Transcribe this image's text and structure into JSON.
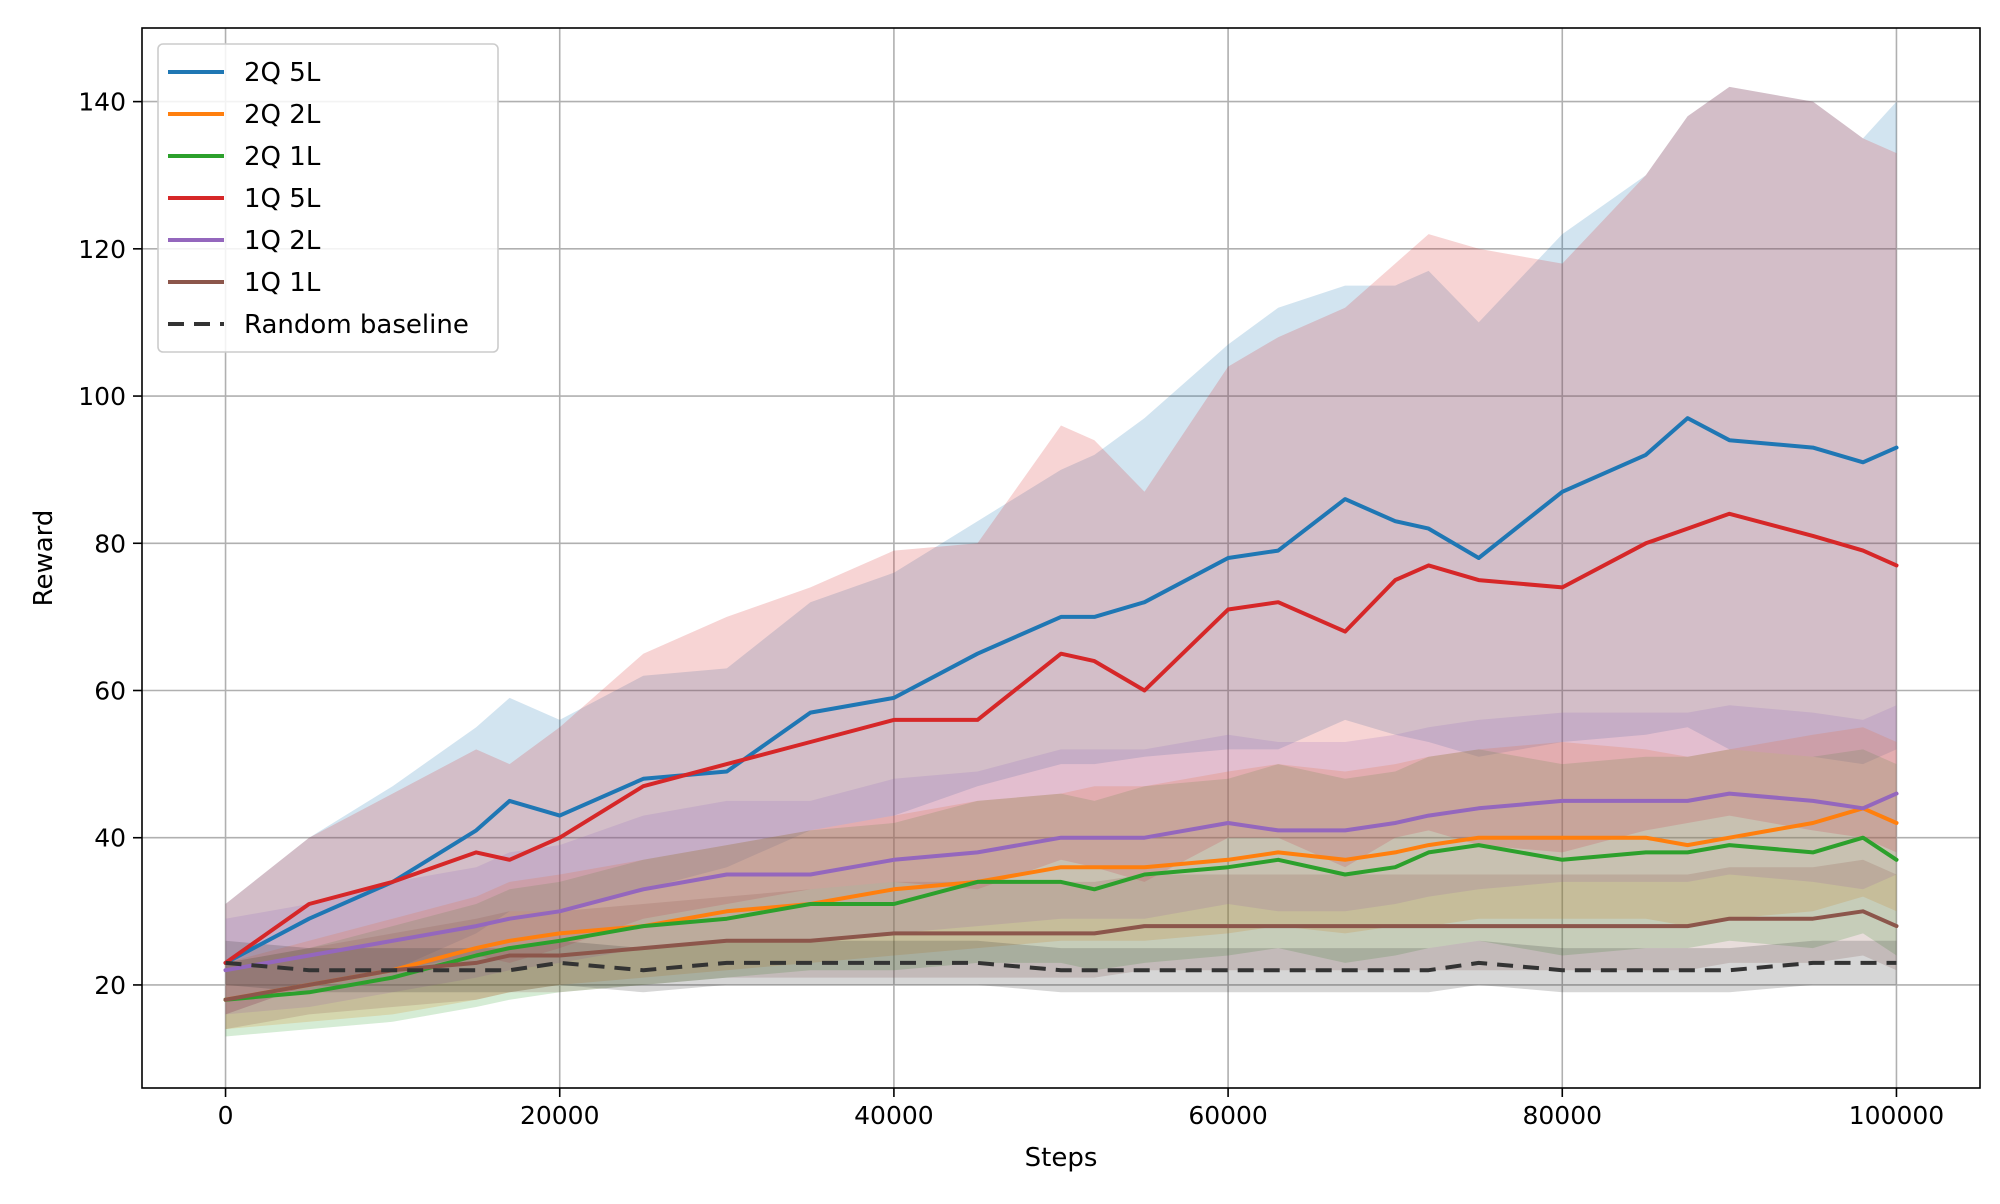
{
  "chart_data": {
    "type": "line",
    "title": "",
    "xlabel": "Steps",
    "ylabel": "Reward",
    "xlim": [
      -5000,
      105000
    ],
    "ylim": [
      6,
      150
    ],
    "xticks": [
      0,
      20000,
      40000,
      60000,
      80000,
      100000
    ],
    "yticks": [
      20,
      40,
      60,
      80,
      100,
      120,
      140
    ],
    "grid": true,
    "legend_position": "top-left",
    "x": [
      0,
      5000,
      10000,
      15000,
      17000,
      20000,
      25000,
      30000,
      35000,
      40000,
      45000,
      50000,
      52000,
      55000,
      60000,
      63000,
      67000,
      70000,
      72000,
      75000,
      80000,
      85000,
      87500,
      90000,
      95000,
      98000,
      100000
    ],
    "series": [
      {
        "name": "2Q 5L",
        "color": "#1f77b4",
        "style": "solid",
        "values": [
          23,
          29,
          34,
          41,
          45,
          43,
          48,
          49,
          57,
          59,
          65,
          70,
          70,
          72,
          78,
          79,
          86,
          83,
          82,
          78,
          87,
          92,
          97,
          94,
          93,
          91,
          93
        ],
        "upper": [
          31,
          40,
          47,
          55,
          59,
          56,
          62,
          63,
          72,
          76,
          83,
          90,
          92,
          97,
          107,
          112,
          115,
          115,
          117,
          110,
          122,
          130,
          138,
          142,
          140,
          135,
          140
        ],
        "lower": [
          16,
          20,
          22,
          27,
          30,
          30,
          33,
          36,
          41,
          43,
          47,
          50,
          50,
          51,
          52,
          52,
          56,
          54,
          53,
          51,
          53,
          54,
          55,
          52,
          51,
          50,
          52
        ]
      },
      {
        "name": "2Q 2L",
        "color": "#ff7f0e",
        "style": "solid",
        "values": [
          18,
          20,
          22,
          25,
          26,
          27,
          28,
          30,
          31,
          33,
          34,
          36,
          36,
          36,
          37,
          38,
          37,
          38,
          39,
          40,
          40,
          40,
          39,
          40,
          42,
          44,
          42
        ],
        "upper": [
          23,
          26,
          29,
          32,
          34,
          35,
          37,
          39,
          41,
          43,
          45,
          46,
          47,
          47,
          49,
          50,
          49,
          50,
          51,
          52,
          53,
          52,
          51,
          52,
          54,
          55,
          53
        ],
        "lower": [
          14,
          15,
          16,
          18,
          19,
          20,
          21,
          22,
          23,
          24,
          25,
          26,
          26,
          26,
          27,
          28,
          27,
          28,
          28,
          29,
          29,
          29,
          28,
          29,
          30,
          32,
          30
        ]
      },
      {
        "name": "2Q 1L",
        "color": "#2ca02c",
        "style": "solid",
        "values": [
          18,
          19,
          21,
          24,
          25,
          26,
          28,
          29,
          31,
          31,
          34,
          34,
          33,
          35,
          36,
          37,
          35,
          36,
          38,
          39,
          37,
          38,
          38,
          39,
          38,
          40,
          37
        ],
        "upper": [
          23,
          25,
          28,
          31,
          33,
          34,
          37,
          39,
          41,
          42,
          45,
          46,
          45,
          47,
          48,
          50,
          48,
          49,
          51,
          52,
          50,
          51,
          51,
          52,
          51,
          52,
          50
        ],
        "lower": [
          13,
          14,
          15,
          17,
          18,
          19,
          20,
          21,
          22,
          22,
          23,
          23,
          22,
          23,
          24,
          25,
          23,
          24,
          25,
          26,
          24,
          25,
          25,
          26,
          25,
          27,
          24
        ]
      },
      {
        "name": "1Q 5L",
        "color": "#d62728",
        "style": "solid",
        "values": [
          23,
          31,
          34,
          38,
          37,
          40,
          47,
          50,
          53,
          56,
          56,
          65,
          64,
          60,
          71,
          72,
          68,
          75,
          77,
          75,
          74,
          80,
          82,
          84,
          81,
          79,
          77
        ],
        "upper": [
          31,
          40,
          46,
          52,
          50,
          55,
          65,
          70,
          74,
          79,
          80,
          96,
          94,
          87,
          104,
          108,
          112,
          118,
          122,
          120,
          118,
          130,
          138,
          142,
          140,
          135,
          133
        ],
        "lower": [
          16,
          20,
          22,
          24,
          23,
          25,
          29,
          31,
          33,
          34,
          33,
          37,
          36,
          34,
          40,
          40,
          36,
          40,
          41,
          39,
          38,
          41,
          42,
          43,
          41,
          40,
          38
        ]
      },
      {
        "name": "1Q 2L",
        "color": "#9467bd",
        "style": "solid",
        "values": [
          22,
          24,
          26,
          28,
          29,
          30,
          33,
          35,
          35,
          37,
          38,
          40,
          40,
          40,
          42,
          41,
          41,
          42,
          43,
          44,
          45,
          45,
          45,
          46,
          45,
          44,
          46
        ],
        "upper": [
          29,
          31,
          34,
          36,
          38,
          39,
          43,
          45,
          45,
          48,
          49,
          52,
          52,
          52,
          54,
          53,
          53,
          54,
          55,
          56,
          57,
          57,
          57,
          58,
          57,
          56,
          58
        ],
        "lower": [
          16,
          17,
          19,
          21,
          22,
          23,
          25,
          26,
          26,
          27,
          28,
          29,
          29,
          29,
          31,
          30,
          30,
          31,
          32,
          33,
          34,
          34,
          34,
          35,
          34,
          33,
          35
        ]
      },
      {
        "name": "1Q 1L",
        "color": "#8c564b",
        "style": "solid",
        "values": [
          18,
          20,
          22,
          23,
          24,
          24,
          25,
          26,
          26,
          27,
          27,
          27,
          27,
          28,
          28,
          28,
          28,
          28,
          28,
          28,
          28,
          28,
          28,
          29,
          29,
          30,
          28
        ],
        "upper": [
          23,
          25,
          27,
          29,
          30,
          30,
          31,
          32,
          33,
          34,
          34,
          34,
          34,
          35,
          35,
          35,
          35,
          35,
          35,
          35,
          35,
          35,
          35,
          36,
          36,
          37,
          35
        ],
        "lower": [
          14,
          16,
          17,
          18,
          19,
          19,
          20,
          21,
          21,
          21,
          21,
          21,
          21,
          22,
          22,
          22,
          22,
          22,
          22,
          22,
          22,
          22,
          22,
          23,
          23,
          24,
          22
        ]
      },
      {
        "name": "Random baseline",
        "color": "#333333",
        "style": "dashed",
        "values": [
          23,
          22,
          22,
          22,
          22,
          23,
          22,
          23,
          23,
          23,
          23,
          22,
          22,
          22,
          22,
          22,
          22,
          22,
          22,
          23,
          22,
          22,
          22,
          22,
          23,
          23,
          23
        ],
        "upper": [
          26,
          25,
          25,
          25,
          25,
          26,
          25,
          26,
          26,
          26,
          26,
          25,
          25,
          25,
          25,
          25,
          25,
          25,
          25,
          26,
          25,
          25,
          25,
          25,
          26,
          26,
          26
        ],
        "lower": [
          20,
          19,
          19,
          19,
          19,
          20,
          19,
          20,
          20,
          20,
          20,
          19,
          19,
          19,
          19,
          19,
          19,
          19,
          19,
          20,
          19,
          19,
          19,
          19,
          20,
          20,
          20
        ]
      }
    ]
  }
}
